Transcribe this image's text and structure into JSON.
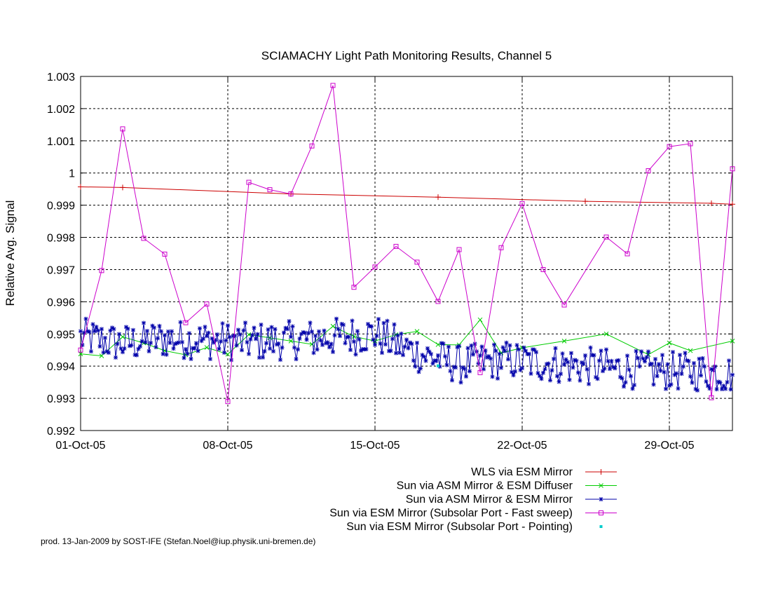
{
  "chart_data": {
    "type": "line",
    "title": "SCIAMACHY Light Path Monitoring Results, Channel 5",
    "ylabel": "Relative Avg. Signal",
    "xlabel": "",
    "xlim": [
      "2005-10-01",
      "2005-11-01"
    ],
    "ylim": [
      0.992,
      1.003
    ],
    "grid": true,
    "legend_position": "bottom-right (below plot)",
    "x_ticks": [
      {
        "date": "2005-10-01",
        "label": "01-Oct-05"
      },
      {
        "date": "2005-10-08",
        "label": "08-Oct-05"
      },
      {
        "date": "2005-10-15",
        "label": "15-Oct-05"
      },
      {
        "date": "2005-10-22",
        "label": "22-Oct-05"
      },
      {
        "date": "2005-10-29",
        "label": "29-Oct-05"
      }
    ],
    "y_ticks": [
      "0.992",
      "0.993",
      "0.994",
      "0.995",
      "0.996",
      "0.997",
      "0.998",
      "0.999",
      "1",
      "1.001",
      "1.002",
      "1.003"
    ],
    "series": [
      {
        "name": "WLS via ESM Mirror",
        "color": "#cc0000",
        "marker": "plus",
        "points": [
          [
            "2005-10-01",
            0.99957
          ],
          [
            "2005-10-03",
            0.99955
          ],
          [
            "2005-10-11",
            0.99935
          ],
          [
            "2005-10-18",
            0.99925
          ],
          [
            "2005-10-25",
            0.99912
          ],
          [
            "2005-10-31",
            0.99906
          ],
          [
            "2005-11-01",
            0.99903
          ]
        ]
      },
      {
        "name": "Sun via ASM Mirror & ESM Diffuser",
        "color": "#00cc00",
        "marker": "x",
        "points": [
          [
            "2005-10-01",
            0.99438
          ],
          [
            "2005-10-02",
            0.99432
          ],
          [
            "2005-10-03",
            0.99491
          ],
          [
            "2005-10-04",
            0.99472
          ],
          [
            "2005-10-05",
            0.99448
          ],
          [
            "2005-10-06",
            0.99435
          ],
          [
            "2005-10-07",
            0.99458
          ],
          [
            "2005-10-08",
            0.99437
          ],
          [
            "2005-10-09",
            0.99498
          ],
          [
            "2005-10-10",
            0.99488
          ],
          [
            "2005-10-11",
            0.99478
          ],
          [
            "2005-10-12",
            0.99468
          ],
          [
            "2005-10-13",
            0.99524
          ],
          [
            "2005-10-14",
            0.99492
          ],
          [
            "2005-10-15",
            0.99478
          ],
          [
            "2005-10-16",
            0.99498
          ],
          [
            "2005-10-17",
            0.99508
          ],
          [
            "2005-10-18",
            0.99467
          ],
          [
            "2005-10-19",
            0.99466
          ],
          [
            "2005-10-20",
            0.99544
          ],
          [
            "2005-10-21",
            0.99441
          ],
          [
            "2005-10-22",
            0.99457
          ],
          [
            "2005-10-24",
            0.99478
          ],
          [
            "2005-10-26",
            0.995
          ],
          [
            "2005-10-28",
            0.99436
          ],
          [
            "2005-10-29",
            0.99472
          ],
          [
            "2005-10-30",
            0.99448
          ],
          [
            "2005-11-01",
            0.99478
          ]
        ]
      },
      {
        "name": "Sun via ASM Mirror & ESM Mirror",
        "color": "#0000aa",
        "marker": "star",
        "points": [
          [
            "2005-10-01",
            0.9949
          ],
          [
            "2005-10-03",
            0.9947
          ],
          [
            "2005-10-05",
            0.99485
          ],
          [
            "2005-10-07",
            0.9948
          ],
          [
            "2005-10-09",
            0.99475
          ],
          [
            "2005-10-11",
            0.9948
          ],
          [
            "2005-10-13",
            0.9949
          ],
          [
            "2005-10-15",
            0.995
          ],
          [
            "2005-10-17",
            0.9944
          ],
          [
            "2005-10-19",
            0.99405
          ],
          [
            "2005-10-21",
            0.9942
          ],
          [
            "2005-10-23",
            0.9941
          ],
          [
            "2005-10-25",
            0.994
          ],
          [
            "2005-10-27",
            0.9939
          ],
          [
            "2005-10-29",
            0.99385
          ],
          [
            "2005-10-31",
            0.9938
          ],
          [
            "2005-11-01",
            0.99375
          ]
        ],
        "jitter_amplitude": 0.0006,
        "samples_per_day": 12
      },
      {
        "name": "Sun via ESM Mirror (Subsolar Port - Fast sweep)",
        "color": "#cc00cc",
        "marker": "square",
        "points": [
          [
            "2005-10-01",
            0.9945
          ],
          [
            "2005-10-02",
            0.99697
          ],
          [
            "2005-10-03",
            1.00137
          ],
          [
            "2005-10-04",
            0.99797
          ],
          [
            "2005-10-05",
            0.99748
          ],
          [
            "2005-10-06",
            0.99535
          ],
          [
            "2005-10-07",
            0.99593
          ],
          [
            "2005-10-08",
            0.9929
          ],
          [
            "2005-10-09",
            0.99971
          ],
          [
            "2005-10-10",
            0.99948
          ],
          [
            "2005-10-11",
            0.99935
          ],
          [
            "2005-10-12",
            1.00084
          ],
          [
            "2005-10-13",
            1.00272
          ],
          [
            "2005-10-14",
            0.99645
          ],
          [
            "2005-10-15",
            0.99708
          ],
          [
            "2005-10-16",
            0.99772
          ],
          [
            "2005-10-17",
            0.99723
          ],
          [
            "2005-10-18",
            0.99601
          ],
          [
            "2005-10-19",
            0.99762
          ],
          [
            "2005-10-20",
            0.9938
          ],
          [
            "2005-10-21",
            0.99768
          ],
          [
            "2005-10-22",
            0.99905
          ],
          [
            "2005-10-23",
            0.997
          ],
          [
            "2005-10-24",
            0.9959
          ],
          [
            "2005-10-26",
            0.99801
          ],
          [
            "2005-10-27",
            0.99749
          ],
          [
            "2005-10-28",
            1.00007
          ],
          [
            "2005-10-29",
            1.00082
          ],
          [
            "2005-10-30",
            1.00091
          ],
          [
            "2005-10-31",
            0.99302
          ],
          [
            "2005-11-01",
            1.00013
          ]
        ]
      },
      {
        "name": "Sun via ESM Mirror (Subsolar Port - Pointing)",
        "color": "#00cccc",
        "marker": "dot",
        "points": [
          [
            "2005-10-18",
            0.99401
          ]
        ]
      }
    ]
  },
  "footer": "prod. 13-Jan-2009 by SOST-IFE (Stefan.Noel@iup.physik.uni-bremen.de)"
}
